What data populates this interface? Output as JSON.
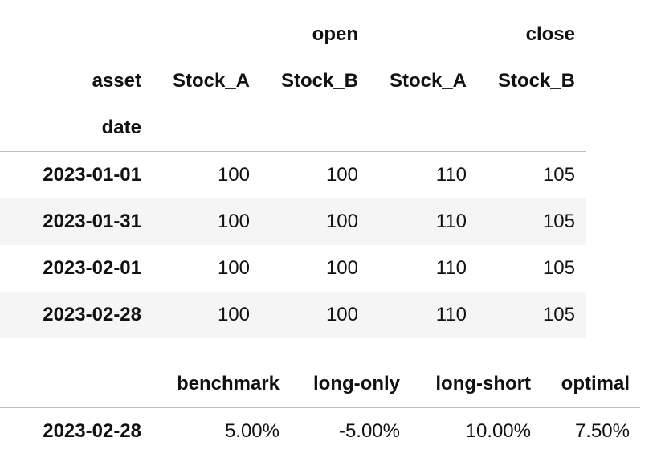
{
  "prices_table": {
    "column_groups": [
      "",
      "open",
      "",
      "close"
    ],
    "asset_label": "asset",
    "assets": [
      "Stock_A",
      "Stock_B",
      "Stock_A",
      "Stock_B"
    ],
    "index_name": "date",
    "rows": [
      {
        "date": "2023-01-01",
        "values": [
          "100",
          "100",
          "110",
          "105"
        ]
      },
      {
        "date": "2023-01-31",
        "values": [
          "100",
          "100",
          "110",
          "105"
        ]
      },
      {
        "date": "2023-02-01",
        "values": [
          "100",
          "100",
          "110",
          "105"
        ]
      },
      {
        "date": "2023-02-28",
        "values": [
          "100",
          "100",
          "110",
          "105"
        ]
      }
    ]
  },
  "performance_table": {
    "columns": [
      "benchmark",
      "long-only",
      "long-short",
      "optimal"
    ],
    "rows": [
      {
        "date": "2023-02-28",
        "values": [
          "5.00%",
          "-5.00%",
          "10.00%",
          "7.50%"
        ]
      }
    ]
  }
}
